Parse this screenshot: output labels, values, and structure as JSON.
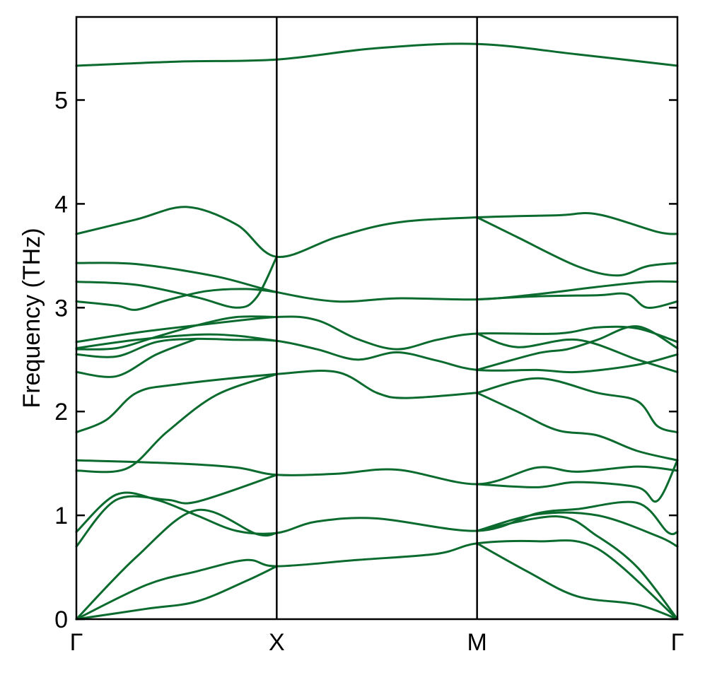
{
  "chart_data": {
    "type": "line",
    "title": "",
    "xlabel": "",
    "ylabel": "Frequency (THz)",
    "ylim": [
      0,
      5.8
    ],
    "xlim": [
      0,
      3
    ],
    "grid": false,
    "legend": "none",
    "colors": {
      "band": "#0b6b2e",
      "axis": "#000000"
    },
    "x_ticks": [
      {
        "x": 0,
        "label": "Γ"
      },
      {
        "x": 1,
        "label": "X"
      },
      {
        "x": 2,
        "label": "M"
      },
      {
        "x": 3,
        "label": "Γ"
      }
    ],
    "y_ticks": [
      {
        "y": 0,
        "label": "0"
      },
      {
        "y": 1,
        "label": "1"
      },
      {
        "y": 2,
        "label": "2"
      },
      {
        "y": 3,
        "label": "3"
      },
      {
        "y": 4,
        "label": "4"
      },
      {
        "y": 5,
        "label": "5"
      }
    ],
    "series": [
      {
        "points": [
          [
            0,
            5.33
          ],
          [
            0.5,
            5.37
          ],
          [
            1,
            5.39
          ],
          [
            1.5,
            5.5
          ],
          [
            2,
            5.54
          ],
          [
            2.5,
            5.44
          ],
          [
            3,
            5.33
          ]
        ]
      },
      {
        "points": [
          [
            0,
            3.71
          ],
          [
            0.3,
            3.85
          ],
          [
            0.55,
            3.97
          ],
          [
            0.8,
            3.8
          ],
          [
            1,
            3.49
          ],
          [
            1.3,
            3.68
          ],
          [
            1.6,
            3.82
          ],
          [
            2,
            3.87
          ],
          [
            2.4,
            3.89
          ],
          [
            2.6,
            3.9
          ],
          [
            2.9,
            3.73
          ],
          [
            3,
            3.71
          ]
        ]
      },
      {
        "points": [
          [
            0,
            3.43
          ],
          [
            0.3,
            3.42
          ],
          [
            0.7,
            3.3
          ],
          [
            1,
            3.15
          ],
          [
            1.3,
            3.06
          ],
          [
            1.6,
            3.09
          ],
          [
            2,
            3.08
          ],
          [
            2.3,
            3.13
          ],
          [
            2.6,
            3.2
          ],
          [
            2.85,
            3.25
          ],
          [
            3,
            3.25
          ]
        ]
      },
      {
        "points": [
          [
            0,
            3.25
          ],
          [
            0.3,
            3.22
          ],
          [
            0.6,
            3.1
          ],
          [
            0.8,
            3.0
          ],
          [
            0.9,
            3.1
          ],
          [
            1,
            3.49
          ]
        ]
      },
      {
        "points": [
          [
            0,
            3.06
          ],
          [
            0.2,
            3.02
          ],
          [
            0.3,
            2.98
          ],
          [
            0.45,
            3.07
          ],
          [
            0.65,
            3.16
          ],
          [
            0.85,
            3.18
          ],
          [
            1,
            3.15
          ]
        ]
      },
      {
        "points": [
          [
            2,
            3.87
          ],
          [
            2.2,
            3.68
          ],
          [
            2.5,
            3.4
          ],
          [
            2.7,
            3.31
          ],
          [
            2.85,
            3.4
          ],
          [
            3,
            3.43
          ]
        ]
      },
      {
        "points": [
          [
            2,
            3.08
          ],
          [
            2.3,
            3.11
          ],
          [
            2.6,
            3.12
          ],
          [
            2.75,
            3.13
          ],
          [
            2.85,
            3.0
          ],
          [
            3,
            3.06
          ]
        ]
      },
      {
        "points": [
          [
            0,
            2.67
          ],
          [
            0.3,
            2.76
          ],
          [
            0.6,
            2.83
          ],
          [
            1,
            2.91
          ],
          [
            1.2,
            2.88
          ],
          [
            1.4,
            2.7
          ],
          [
            1.6,
            2.6
          ],
          [
            1.8,
            2.69
          ],
          [
            2,
            2.75
          ],
          [
            2.4,
            2.75
          ],
          [
            2.6,
            2.81
          ],
          [
            2.8,
            2.8
          ],
          [
            3,
            2.67
          ]
        ]
      },
      {
        "points": [
          [
            0,
            2.61
          ],
          [
            0.3,
            2.69
          ],
          [
            0.6,
            2.74
          ],
          [
            0.8,
            2.73
          ],
          [
            1,
            2.68
          ]
        ]
      },
      {
        "points": [
          [
            0,
            2.6
          ],
          [
            0.2,
            2.61
          ],
          [
            0.4,
            2.72
          ],
          [
            0.6,
            2.83
          ],
          [
            0.8,
            2.91
          ],
          [
            1,
            2.91
          ]
        ]
      },
      {
        "points": [
          [
            0,
            2.55
          ],
          [
            0.2,
            2.53
          ],
          [
            0.4,
            2.67
          ],
          [
            0.6,
            2.7
          ],
          [
            0.8,
            2.69
          ],
          [
            1,
            2.68
          ],
          [
            1.2,
            2.6
          ],
          [
            1.4,
            2.5
          ],
          [
            1.6,
            2.57
          ],
          [
            1.8,
            2.49
          ],
          [
            2,
            2.4
          ],
          [
            2.3,
            2.4
          ],
          [
            2.5,
            2.38
          ],
          [
            2.8,
            2.45
          ],
          [
            3,
            2.55
          ]
        ]
      },
      {
        "points": [
          [
            0,
            2.38
          ],
          [
            0.2,
            2.34
          ],
          [
            0.4,
            2.55
          ],
          [
            0.6,
            2.7
          ]
        ]
      },
      {
        "points": [
          [
            2,
            2.75
          ],
          [
            2.2,
            2.62
          ],
          [
            2.5,
            2.69
          ],
          [
            2.8,
            2.5
          ],
          [
            3,
            2.38
          ]
        ]
      },
      {
        "points": [
          [
            2,
            2.4
          ],
          [
            2.3,
            2.56
          ],
          [
            2.45,
            2.6
          ],
          [
            2.6,
            2.69
          ],
          [
            2.8,
            2.82
          ],
          [
            3,
            2.61
          ]
        ]
      },
      {
        "points": [
          [
            0,
            1.8
          ],
          [
            0.15,
            1.92
          ],
          [
            0.3,
            2.18
          ],
          [
            0.5,
            2.26
          ],
          [
            1,
            2.36
          ],
          [
            1.3,
            2.38
          ],
          [
            1.5,
            2.18
          ],
          [
            1.65,
            2.13
          ],
          [
            2,
            2.18
          ]
        ]
      },
      {
        "points": [
          [
            0,
            1.43
          ],
          [
            0.25,
            1.45
          ],
          [
            0.45,
            1.8
          ],
          [
            0.7,
            2.16
          ],
          [
            1,
            2.36
          ]
        ]
      },
      {
        "points": [
          [
            2,
            2.18
          ],
          [
            2.3,
            2.32
          ],
          [
            2.6,
            2.18
          ],
          [
            2.8,
            2.1
          ],
          [
            2.9,
            1.86
          ],
          [
            3,
            1.8
          ]
        ]
      },
      {
        "points": [
          [
            2,
            2.18
          ],
          [
            2.2,
            2.0
          ],
          [
            2.4,
            1.82
          ],
          [
            2.6,
            1.77
          ],
          [
            2.8,
            1.62
          ],
          [
            3,
            1.53
          ]
        ]
      },
      {
        "points": [
          [
            0,
            1.53
          ],
          [
            0.5,
            1.5
          ],
          [
            0.8,
            1.46
          ],
          [
            1,
            1.39
          ],
          [
            1.3,
            1.4
          ],
          [
            1.6,
            1.44
          ],
          [
            2,
            1.3
          ],
          [
            2.3,
            1.46
          ],
          [
            2.5,
            1.42
          ],
          [
            2.8,
            1.47
          ],
          [
            3,
            1.43
          ]
        ]
      },
      {
        "points": [
          [
            2,
            1.3
          ],
          [
            2.3,
            1.27
          ],
          [
            2.5,
            1.32
          ],
          [
            2.8,
            1.27
          ],
          [
            2.9,
            1.14
          ],
          [
            3,
            1.53
          ]
        ]
      },
      {
        "points": [
          [
            0,
            0.84
          ],
          [
            0.2,
            1.2
          ],
          [
            0.4,
            1.15
          ],
          [
            0.6,
            1.0
          ],
          [
            0.8,
            0.85
          ],
          [
            1,
            0.83
          ],
          [
            1.2,
            0.94
          ],
          [
            1.5,
            0.97
          ],
          [
            2,
            0.85
          ],
          [
            2.3,
            1.02
          ],
          [
            2.5,
            1.06
          ],
          [
            2.8,
            1.12
          ],
          [
            2.95,
            0.84
          ],
          [
            3,
            0.84
          ]
        ]
      },
      {
        "points": [
          [
            0,
            0.7
          ],
          [
            0.2,
            1.15
          ],
          [
            0.45,
            1.15
          ],
          [
            0.6,
            1.13
          ],
          [
            1,
            1.39
          ]
        ]
      },
      {
        "points": [
          [
            0,
            0
          ],
          [
            0.3,
            0.6
          ],
          [
            0.6,
            1.05
          ],
          [
            0.9,
            0.82
          ],
          [
            1,
            0.83
          ]
        ]
      },
      {
        "points": [
          [
            2,
            0.85
          ],
          [
            2.4,
            0.99
          ],
          [
            2.6,
            0.8
          ],
          [
            2.8,
            0.5
          ],
          [
            3,
            0
          ]
        ]
      },
      {
        "points": [
          [
            2,
            0.85
          ],
          [
            2.3,
            1.01
          ],
          [
            2.6,
            1.0
          ],
          [
            2.9,
            0.8
          ],
          [
            3,
            0.7
          ]
        ]
      },
      {
        "points": [
          [
            0,
            0
          ],
          [
            0.35,
            0.33
          ],
          [
            0.6,
            0.46
          ],
          [
            0.85,
            0.57
          ],
          [
            1,
            0.51
          ],
          [
            1.4,
            0.57
          ],
          [
            1.8,
            0.63
          ],
          [
            2,
            0.73
          ],
          [
            2.3,
            0.75
          ],
          [
            2.6,
            0.68
          ],
          [
            3,
            0
          ]
        ]
      },
      {
        "points": [
          [
            0,
            0
          ],
          [
            0.35,
            0.1
          ],
          [
            0.6,
            0.17
          ],
          [
            0.85,
            0.37
          ],
          [
            1,
            0.51
          ]
        ]
      },
      {
        "points": [
          [
            2,
            0.73
          ],
          [
            2.25,
            0.46
          ],
          [
            2.5,
            0.22
          ],
          [
            2.8,
            0.14
          ],
          [
            3,
            0
          ]
        ]
      }
    ]
  }
}
